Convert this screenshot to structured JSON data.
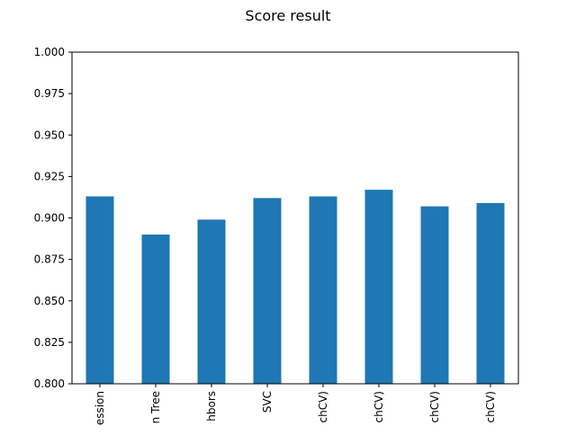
{
  "chart_data": {
    "type": "bar",
    "title": "Score result",
    "categories": [
      "ession",
      "n Tree",
      "hbors",
      "SVC",
      "chCV)",
      "chCV)",
      "chCV)",
      "chCV)"
    ],
    "values": [
      0.913,
      0.89,
      0.899,
      0.912,
      0.913,
      0.917,
      0.907,
      0.909
    ],
    "ylim": [
      0.8,
      1.0
    ],
    "yticks": [
      "0.800",
      "0.825",
      "0.850",
      "0.875",
      "0.900",
      "0.925",
      "0.950",
      "0.975",
      "1.000"
    ],
    "bar_color": "#1f77b4",
    "grid": false,
    "legend": "none"
  }
}
